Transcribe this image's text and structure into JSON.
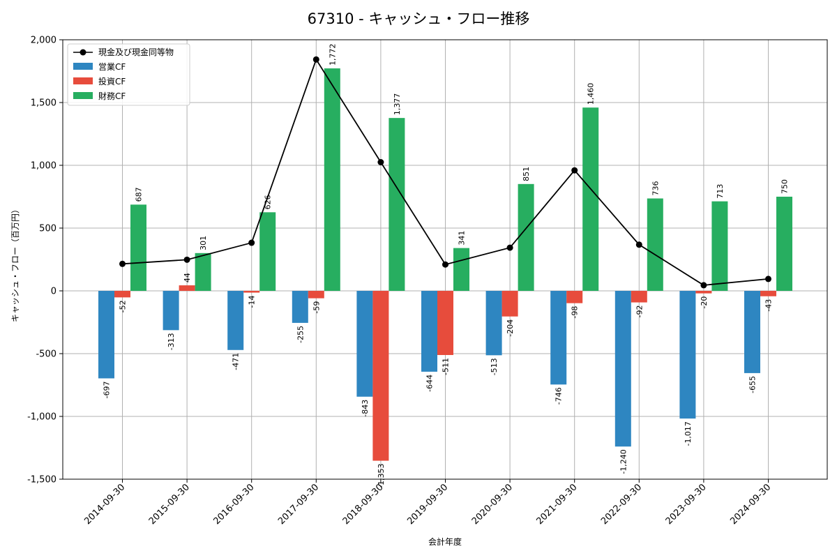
{
  "chart_data": {
    "type": "bar",
    "title": "67310 - キャッシュ・フロー推移",
    "xlabel": "会計年度",
    "ylabel": "キャッシュ・フロー（百万円）",
    "ylim": [
      -1500,
      2000
    ],
    "yticks": [
      -1500,
      -1000,
      -500,
      0,
      500,
      1000,
      1500,
      2000
    ],
    "ytick_labels": [
      "-1,500",
      "-1,000",
      "-500",
      "0",
      "500",
      "1,000",
      "1,500",
      "2,000"
    ],
    "grid": true,
    "legend_position": "top-left",
    "categories": [
      "2014-09-30",
      "2015-09-30",
      "2016-09-30",
      "2017-09-30",
      "2018-09-30",
      "2019-09-30",
      "2020-09-30",
      "2021-09-30",
      "2022-09-30",
      "2023-09-30",
      "2024-09-30"
    ],
    "series": [
      {
        "name": "営業CF",
        "kind": "bar",
        "color": "#2e86c1",
        "values": [
          -697,
          -313,
          -471,
          -255,
          -843,
          -644,
          -513,
          -746,
          -1240,
          -1017,
          -655
        ],
        "labels": [
          "-697",
          "-313",
          "-471",
          "-255",
          "-843",
          "-644",
          "-513",
          "-746",
          "-1,240",
          "-1,017",
          "-655"
        ]
      },
      {
        "name": "投資CF",
        "kind": "bar",
        "color": "#e74c3c",
        "values": [
          -52,
          44,
          -14,
          -59,
          -1353,
          -511,
          -204,
          -98,
          -92,
          -20,
          -43
        ],
        "labels": [
          "-52",
          "44",
          "-14",
          "-59",
          "-1,353",
          "-511",
          "-204",
          "-98",
          "-92",
          "-20",
          "-43"
        ]
      },
      {
        "name": "財務CF",
        "kind": "bar",
        "color": "#27ae60",
        "values": [
          687,
          301,
          626,
          1772,
          1377,
          341,
          851,
          1460,
          736,
          713,
          750
        ],
        "labels": [
          "687",
          "301",
          "626",
          "1,772",
          "1,377",
          "341",
          "851",
          "1,460",
          "736",
          "713",
          "750"
        ]
      },
      {
        "name": "現金及び現金同等物",
        "kind": "line",
        "color": "#000000",
        "values": [
          215,
          248,
          383,
          1843,
          1025,
          210,
          344,
          960,
          368,
          45,
          95
        ]
      }
    ]
  }
}
